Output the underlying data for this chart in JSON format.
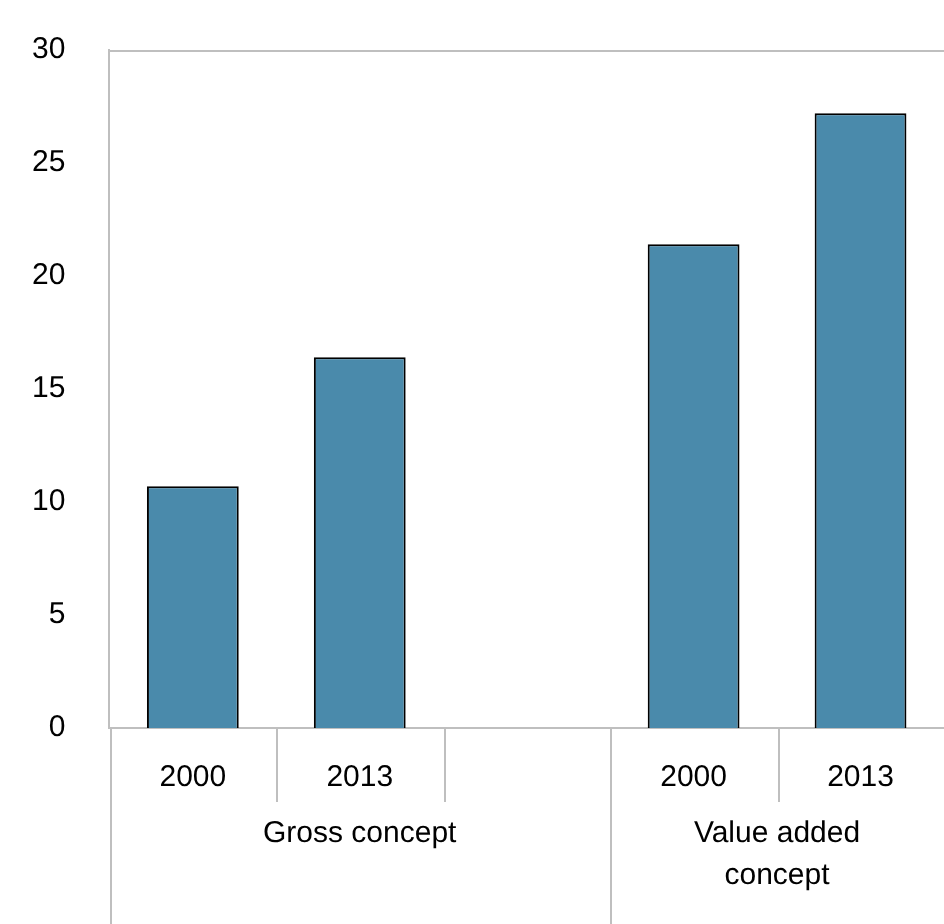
{
  "chart_data": {
    "type": "bar",
    "categories": [
      "2000",
      "2013",
      null,
      "2000",
      "2013"
    ],
    "values": [
      10.7,
      16.4,
      null,
      21.4,
      27.2
    ],
    "color": "#4a8aab",
    "ylim": [
      0,
      30
    ],
    "yticks": [
      0,
      5,
      10,
      15,
      20,
      25,
      30
    ],
    "grid": false,
    "legend": false,
    "annotations": [
      "Gross concept",
      "Value added concept"
    ]
  }
}
